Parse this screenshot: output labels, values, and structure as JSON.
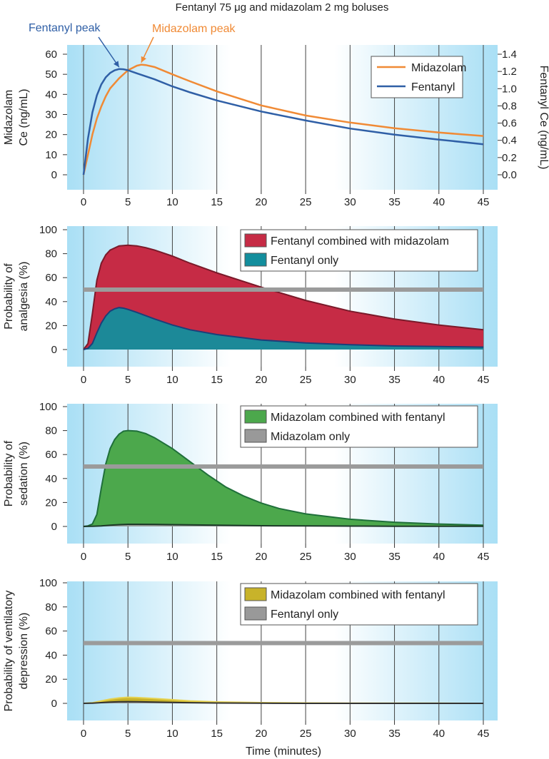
{
  "figure": {
    "title": "Fentanyl 75 μg and midazolam 2 mg boluses",
    "xlabel": "Time (minutes)"
  },
  "chart_data": [
    {
      "type": "line",
      "id": "ce",
      "title": "",
      "ylabel_lines": [
        "Midazolam",
        "Ce (ng/mL)"
      ],
      "y2label": "Fentanyl Ce (ng/mL)",
      "xlim": [
        0,
        45
      ],
      "ylim": [
        0,
        60
      ],
      "y2lim": [
        0,
        1.4
      ],
      "xticks": [
        0,
        5,
        10,
        15,
        20,
        25,
        30,
        35,
        40,
        45
      ],
      "yticks": [
        0,
        10,
        20,
        30,
        40,
        50,
        60
      ],
      "y2ticks": [
        "0.0",
        "0.2",
        "0.4",
        "0.6",
        "0.8",
        "1.0",
        "1.2",
        "1.4"
      ],
      "grid": "vertical",
      "legend": "top-right",
      "annotations": [
        {
          "text": "Fentanyl peak",
          "color": "#2f5fa6",
          "x": 4.0,
          "y": 52.5
        },
        {
          "text": "Midazolam peak",
          "color": "#f08a35",
          "x": 6.5,
          "y": 54.8
        }
      ],
      "series": [
        {
          "name": "Midazolam",
          "color": "#f08a35",
          "axis": "left",
          "x": [
            0,
            0.5,
            1,
            1.5,
            2,
            2.5,
            3,
            4,
            5,
            6,
            6.5,
            7,
            8,
            10,
            12,
            15,
            20,
            25,
            30,
            35,
            40,
            45
          ],
          "y": [
            0,
            10,
            20,
            28,
            34,
            39,
            43,
            48,
            52,
            54.3,
            54.8,
            54.6,
            53.6,
            50,
            46.5,
            41.5,
            34.5,
            29.5,
            26,
            23.2,
            21,
            19.3
          ]
        },
        {
          "name": "Fentanyl",
          "color": "#2f5fa6",
          "axis": "left",
          "x": [
            0,
            0.5,
            1,
            1.5,
            2,
            2.5,
            3,
            3.5,
            4,
            4.5,
            5,
            6,
            8,
            10,
            12,
            15,
            20,
            25,
            30,
            35,
            40,
            45
          ],
          "y": [
            0,
            18,
            31,
            39.5,
            45,
            48.5,
            50.7,
            52,
            52.6,
            52.5,
            52,
            50.5,
            47.5,
            44,
            41,
            37,
            31.5,
            27,
            23,
            20,
            17.5,
            15.2
          ]
        }
      ]
    },
    {
      "type": "area",
      "id": "analgesia",
      "ylabel_lines": [
        "Probability of",
        "analgesia (%)"
      ],
      "xlim": [
        0,
        45
      ],
      "ylim": [
        0,
        100
      ],
      "xticks": [
        0,
        5,
        10,
        15,
        20,
        25,
        30,
        35,
        40,
        45
      ],
      "yticks": [
        0,
        20,
        40,
        60,
        80,
        100
      ],
      "grid": "vertical",
      "legend": "top-right",
      "reference_line": 50,
      "series": [
        {
          "name": "Fentanyl combined with midazolam",
          "color": "#c62b45",
          "edge": "#7a1a2a",
          "x": [
            0,
            0.5,
            1,
            1.5,
            2,
            2.5,
            3,
            4,
            5,
            6,
            7,
            8,
            10,
            12,
            15,
            20,
            25,
            30,
            35,
            40,
            45
          ],
          "y": [
            0,
            5,
            30,
            58,
            72,
            79,
            83,
            86.5,
            87,
            86.5,
            85,
            83,
            78,
            72,
            64,
            52,
            41,
            32,
            25.5,
            20.5,
            16.5
          ]
        },
        {
          "name": "Fentanyl only",
          "color": "#138e9d",
          "edge": "#1b3f7a",
          "x": [
            0,
            0.5,
            1,
            1.5,
            2,
            2.5,
            3,
            3.5,
            4,
            4.5,
            5,
            6,
            8,
            10,
            12,
            15,
            20,
            25,
            30,
            35,
            40,
            45
          ],
          "y": [
            0,
            1,
            5,
            14,
            22,
            28,
            32,
            34,
            35,
            34.5,
            33.5,
            31,
            25.5,
            20.5,
            16.5,
            12.5,
            8,
            5.5,
            4,
            3,
            2.5,
            2
          ]
        }
      ]
    },
    {
      "type": "area",
      "id": "sedation",
      "ylabel_lines": [
        "Probability of",
        "sedation (%)"
      ],
      "xlim": [
        0,
        45
      ],
      "ylim": [
        0,
        100
      ],
      "xticks": [
        0,
        5,
        10,
        15,
        20,
        25,
        30,
        35,
        40,
        45
      ],
      "yticks": [
        0,
        20,
        40,
        60,
        80,
        100
      ],
      "grid": "vertical",
      "legend": "top-right",
      "reference_line": 50,
      "series": [
        {
          "name": "Midazolam combined with fentanyl",
          "color": "#4ca84c",
          "edge": "#1f6f3a",
          "x": [
            0,
            0.5,
            1,
            1.5,
            2,
            2.5,
            3,
            3.5,
            4,
            4.5,
            5,
            6,
            7,
            8,
            10,
            12,
            14,
            16,
            18,
            20,
            22,
            25,
            30,
            35,
            40,
            45
          ],
          "y": [
            0,
            0.5,
            2,
            10,
            32,
            52,
            65,
            72.5,
            77,
            79.5,
            80,
            79.5,
            77.5,
            74,
            65,
            54,
            43,
            33,
            25.5,
            19.5,
            15,
            10.5,
            6,
            3.5,
            2,
            1
          ]
        },
        {
          "name": "Midazolam only",
          "color": "#999999",
          "edge": "#1c3a28",
          "x": [
            0,
            1,
            2,
            3,
            4,
            5,
            6,
            8,
            10,
            15,
            20,
            25,
            30,
            35,
            40,
            45
          ],
          "y": [
            0,
            0.2,
            0.5,
            1,
            1.5,
            1.8,
            1.8,
            1.7,
            1.5,
            1,
            0.6,
            0.4,
            0.3,
            0.2,
            0.1,
            0.1
          ]
        }
      ]
    },
    {
      "type": "area",
      "id": "ventilatory",
      "ylabel_lines": [
        "Probability of ventilatory",
        "depression (%)"
      ],
      "xlim": [
        0,
        45
      ],
      "ylim": [
        0,
        100
      ],
      "xticks": [
        0,
        5,
        10,
        15,
        20,
        25,
        30,
        35,
        40,
        45
      ],
      "yticks": [
        0,
        20,
        40,
        60,
        80,
        100
      ],
      "grid": "vertical",
      "legend": "top-right",
      "reference_line": 50,
      "series": [
        {
          "name": "Midazolam combined with fentanyl",
          "color": "#c8b32a",
          "edge": "#e6d24f",
          "x": [
            0,
            1,
            2,
            3,
            4,
            5,
            6,
            8,
            10,
            12,
            15,
            20,
            25,
            30,
            35,
            40,
            45
          ],
          "y": [
            0,
            0.5,
            2,
            3.5,
            4.5,
            5,
            4.8,
            4,
            3,
            2,
            1.2,
            0.6,
            0.3,
            0.2,
            0.1,
            0.1,
            0
          ]
        },
        {
          "name": "Fentanyl only",
          "color": "#999999",
          "edge": "#333333",
          "x": [
            0,
            1,
            2,
            3,
            4,
            5,
            6,
            8,
            10,
            15,
            20,
            25,
            30,
            35,
            40,
            45
          ],
          "y": [
            0,
            0.2,
            0.6,
            1,
            1.3,
            1.4,
            1.3,
            1,
            0.7,
            0.3,
            0.1,
            0,
            0,
            0,
            0,
            0
          ]
        }
      ]
    }
  ]
}
